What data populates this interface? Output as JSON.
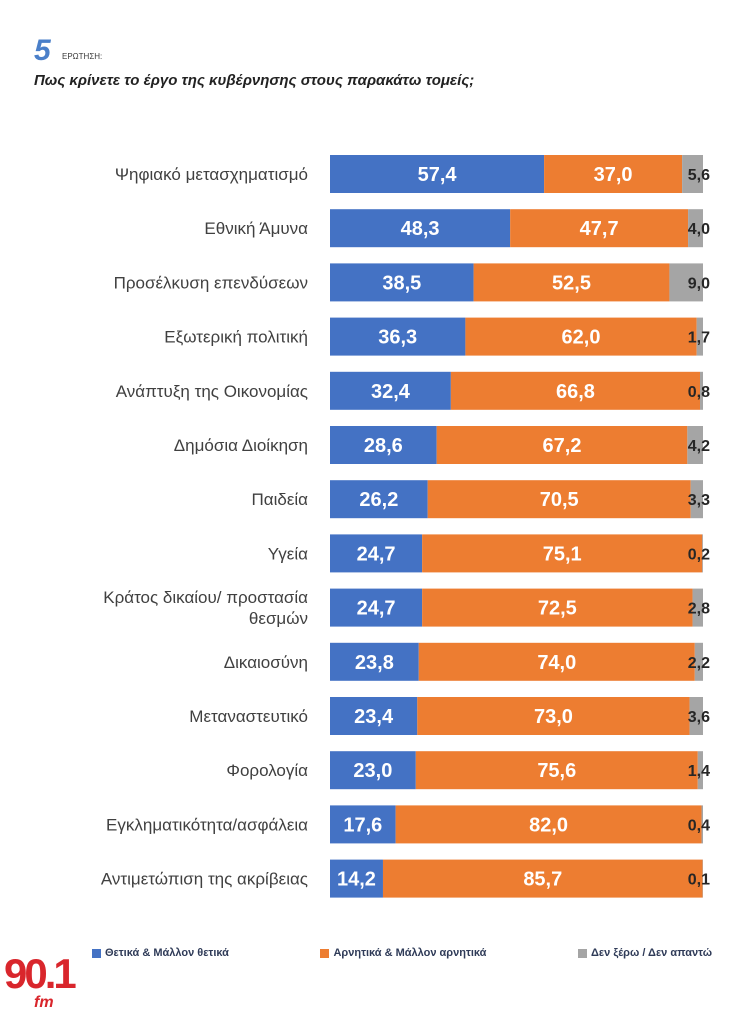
{
  "header": {
    "question_number": "5",
    "question_label": "ΕΡΩΤΗΣΗ:",
    "title": "Πως κρίνετε το έργο της κυβέρνησης στους παρακάτω τομείς;"
  },
  "colors": {
    "positive": "#4472c4",
    "negative": "#ed7d31",
    "unknown": "#a5a5a5",
    "logo": "#d9262c"
  },
  "chart_data": {
    "type": "bar",
    "orientation": "horizontal",
    "stacked": true,
    "xlim": [
      0,
      100
    ],
    "grid": false,
    "legend_position": "bottom",
    "categories": [
      [
        "Ψηφιακό μετασχηματισμό"
      ],
      [
        "Εθνική Άμυνα"
      ],
      [
        "Προσέλκυση επενδύσεων"
      ],
      [
        "Εξωτερική πολιτική"
      ],
      [
        "Ανάπτυξη της Οικονομίας"
      ],
      [
        "Δημόσια Διοίκηση"
      ],
      [
        "Παιδεία"
      ],
      [
        "Υγεία"
      ],
      [
        "Κράτος δικαίου/ προστασία",
        "θεσμών"
      ],
      [
        "Δικαιοσύνη"
      ],
      [
        "Μεταναστευτικό"
      ],
      [
        "Φορολογία"
      ],
      [
        "Εγκληματικότητα/ασφάλεια"
      ],
      [
        "Αντιμετώπιση της ακρίβειας"
      ]
    ],
    "series": [
      {
        "name": "Θετικά & Μάλλον θετικά",
        "values": [
          57.4,
          48.3,
          38.5,
          36.3,
          32.4,
          28.6,
          26.2,
          24.7,
          24.7,
          23.8,
          23.4,
          23.0,
          17.6,
          14.2
        ]
      },
      {
        "name": "Αρνητικά & Μάλλον αρνητικά",
        "values": [
          37.0,
          47.7,
          52.5,
          62.0,
          66.8,
          67.2,
          70.5,
          75.1,
          72.5,
          74.0,
          73.0,
          75.6,
          82.0,
          85.7
        ]
      },
      {
        "name": "Δεν ξέρω / Δεν απαντώ",
        "values": [
          5.6,
          4.0,
          9.0,
          1.7,
          0.8,
          4.2,
          3.3,
          0.2,
          2.8,
          2.2,
          3.6,
          1.4,
          0.4,
          0.1
        ]
      }
    ]
  },
  "logo": {
    "number": "90.1",
    "suffix": "fm"
  }
}
